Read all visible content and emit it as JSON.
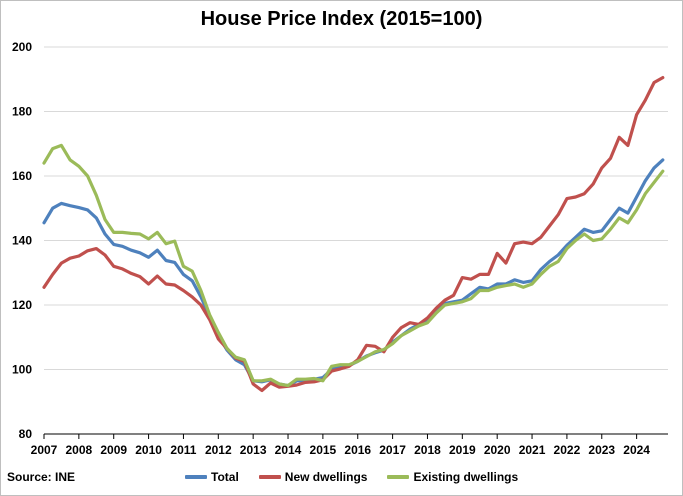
{
  "source": "Source: INE",
  "chart_data": {
    "type": "line",
    "title": "House Price Index (2015=100)",
    "xlabel": "",
    "ylabel": "",
    "ylim": [
      80,
      200
    ],
    "xlim": [
      2007,
      2024.9
    ],
    "yticks": [
      80,
      100,
      120,
      140,
      160,
      180,
      200
    ],
    "xticks": [
      "2007",
      "2008",
      "2009",
      "2010",
      "2011",
      "2012",
      "2013",
      "2014",
      "2015",
      "2016",
      "2017",
      "2018",
      "2019",
      "2020",
      "2021",
      "2022",
      "2023",
      "2024"
    ],
    "grid": "horizontal",
    "legend": "bottom",
    "x": [
      2007.0,
      2007.25,
      2007.5,
      2007.75,
      2008.0,
      2008.25,
      2008.5,
      2008.75,
      2009.0,
      2009.25,
      2009.5,
      2009.75,
      2010.0,
      2010.25,
      2010.5,
      2010.75,
      2011.0,
      2011.25,
      2011.5,
      2011.75,
      2012.0,
      2012.25,
      2012.5,
      2012.75,
      2013.0,
      2013.25,
      2013.5,
      2013.75,
      2014.0,
      2014.25,
      2014.5,
      2014.75,
      2015.0,
      2015.25,
      2015.5,
      2015.75,
      2016.0,
      2016.25,
      2016.5,
      2016.75,
      2017.0,
      2017.25,
      2017.5,
      2017.75,
      2018.0,
      2018.25,
      2018.5,
      2018.75,
      2019.0,
      2019.25,
      2019.5,
      2019.75,
      2020.0,
      2020.25,
      2020.5,
      2020.75,
      2021.0,
      2021.25,
      2021.5,
      2021.75,
      2022.0,
      2022.25,
      2022.5,
      2022.75,
      2023.0,
      2023.25,
      2023.5,
      2023.75,
      2024.0,
      2024.25,
      2024.5,
      2024.75
    ],
    "series": [
      {
        "name": "Total",
        "color": "#4e81bd",
        "values": [
          145.5,
          150.0,
          151.5,
          150.8,
          150.2,
          149.5,
          147.0,
          142.0,
          138.8,
          138.2,
          137.0,
          136.2,
          134.8,
          137.0,
          133.8,
          133.2,
          129.5,
          127.5,
          122.5,
          116.5,
          110.5,
          106.0,
          103.0,
          101.5,
          96.5,
          96.2,
          96.8,
          95.5,
          95.0,
          96.5,
          96.5,
          97.0,
          97.5,
          100.0,
          101.0,
          101.2,
          102.5,
          104.2,
          105.2,
          106.0,
          108.5,
          110.5,
          112.5,
          114.0,
          115.5,
          118.5,
          120.5,
          121.0,
          121.5,
          123.5,
          125.5,
          125.0,
          126.5,
          126.5,
          127.8,
          127.0,
          127.5,
          131.0,
          133.5,
          135.5,
          138.5,
          141.0,
          143.5,
          142.5,
          143.0,
          146.5,
          150.0,
          148.5,
          153.5,
          158.5,
          162.5,
          165.0
        ]
      },
      {
        "name": "New dwellings",
        "color": "#c0504d",
        "values": [
          125.5,
          129.5,
          133.0,
          134.5,
          135.2,
          136.8,
          137.5,
          135.5,
          132.0,
          131.2,
          129.8,
          128.8,
          126.5,
          129.0,
          126.5,
          126.2,
          124.5,
          122.5,
          120.0,
          115.5,
          109.5,
          106.5,
          103.5,
          102.5,
          95.5,
          93.5,
          95.8,
          94.5,
          94.8,
          95.2,
          96.0,
          96.2,
          96.8,
          99.5,
          100.2,
          101.0,
          103.0,
          107.5,
          107.2,
          105.5,
          110.0,
          113.0,
          114.5,
          114.0,
          116.0,
          119.0,
          121.5,
          123.0,
          128.5,
          128.0,
          129.5,
          129.5,
          136.0,
          133.0,
          139.0,
          139.5,
          139.0,
          141.0,
          144.5,
          148.0,
          153.0,
          153.5,
          154.5,
          157.5,
          162.5,
          165.5,
          172.0,
          169.5,
          179.0,
          183.5,
          189.0,
          190.5
        ]
      },
      {
        "name": "Existing dwellings",
        "color": "#9bbb59",
        "values": [
          164.0,
          168.5,
          169.5,
          165.0,
          163.0,
          160.0,
          154.0,
          146.5,
          142.5,
          142.5,
          142.2,
          142.0,
          140.5,
          142.5,
          139.0,
          139.8,
          132.0,
          130.5,
          124.5,
          117.0,
          111.5,
          106.5,
          103.8,
          103.0,
          96.5,
          96.5,
          97.0,
          95.5,
          95.0,
          97.0,
          97.0,
          97.2,
          96.5,
          101.0,
          101.5,
          101.5,
          102.5,
          104.0,
          105.5,
          106.2,
          108.0,
          110.5,
          112.0,
          113.5,
          114.5,
          117.5,
          120.0,
          120.5,
          121.0,
          122.0,
          124.5,
          124.5,
          125.5,
          126.0,
          126.5,
          125.5,
          126.5,
          129.5,
          132.0,
          133.5,
          137.5,
          140.0,
          142.0,
          140.0,
          140.5,
          143.5,
          147.0,
          145.5,
          149.5,
          154.5,
          158.0,
          161.5
        ]
      }
    ]
  }
}
